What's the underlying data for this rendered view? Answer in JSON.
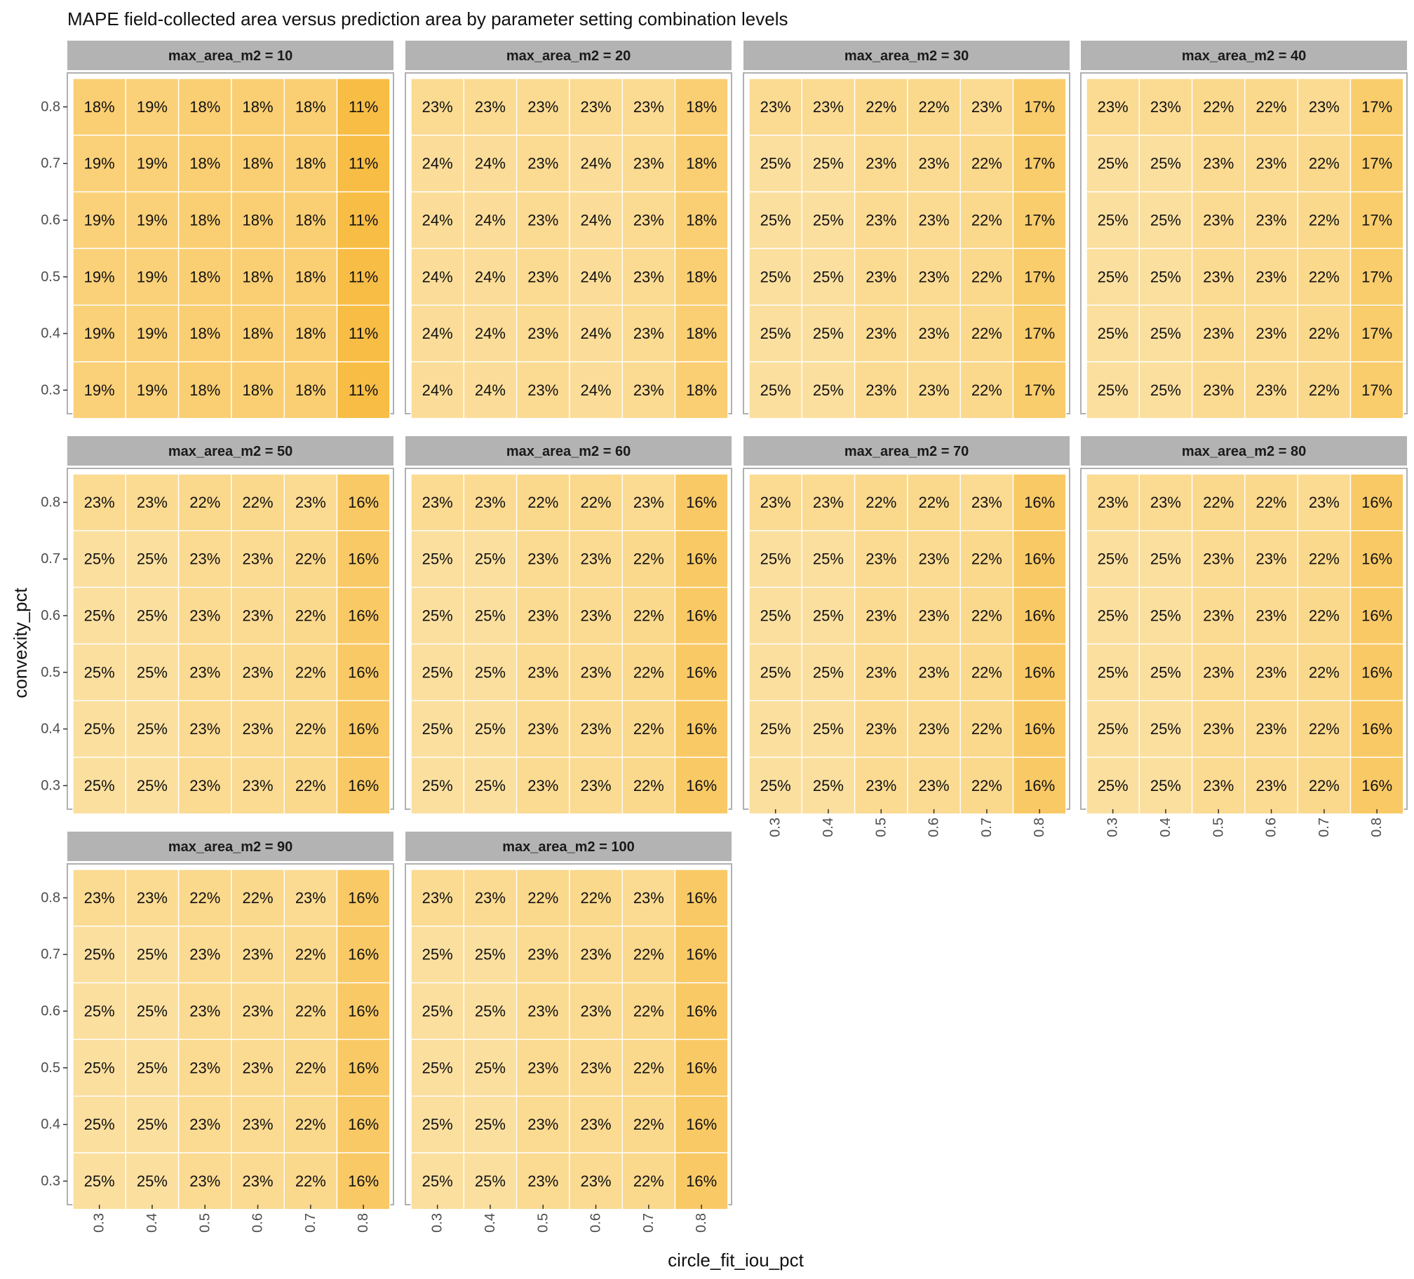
{
  "chart_data": {
    "type": "heatmap",
    "title": "MAPE field-collected area versus prediction area by parameter setting combination levels",
    "xlabel": "circle_fit_iou_pct",
    "ylabel": "convexity_pct",
    "x_ticks": [
      "0.3",
      "0.4",
      "0.5",
      "0.6",
      "0.7",
      "0.8"
    ],
    "y_ticks": [
      "0.3",
      "0.4",
      "0.5",
      "0.6",
      "0.7",
      "0.8"
    ],
    "facet_variable": "max_area_m2",
    "value_format": "percent",
    "color_scale": {
      "low": "#fbdf9f",
      "high": "#f8bd45"
    },
    "panels": [
      {
        "label": "max_area_m2 = 10",
        "rows": [
          {
            "y": "0.8",
            "values": [
              18,
              19,
              18,
              18,
              18,
              11
            ]
          },
          {
            "y": "0.7",
            "values": [
              19,
              19,
              18,
              18,
              18,
              11
            ]
          },
          {
            "y": "0.6",
            "values": [
              19,
              19,
              18,
              18,
              18,
              11
            ]
          },
          {
            "y": "0.5",
            "values": [
              19,
              19,
              18,
              18,
              18,
              11
            ]
          },
          {
            "y": "0.4",
            "values": [
              19,
              19,
              18,
              18,
              18,
              11
            ]
          },
          {
            "y": "0.3",
            "values": [
              19,
              19,
              18,
              18,
              18,
              11
            ]
          }
        ]
      },
      {
        "label": "max_area_m2 = 20",
        "rows": [
          {
            "y": "0.8",
            "values": [
              23,
              23,
              23,
              23,
              23,
              18
            ]
          },
          {
            "y": "0.7",
            "values": [
              24,
              24,
              23,
              24,
              23,
              18
            ]
          },
          {
            "y": "0.6",
            "values": [
              24,
              24,
              23,
              24,
              23,
              18
            ]
          },
          {
            "y": "0.5",
            "values": [
              24,
              24,
              23,
              24,
              23,
              18
            ]
          },
          {
            "y": "0.4",
            "values": [
              24,
              24,
              23,
              24,
              23,
              18
            ]
          },
          {
            "y": "0.3",
            "values": [
              24,
              24,
              23,
              24,
              23,
              18
            ]
          }
        ]
      },
      {
        "label": "max_area_m2 = 30",
        "rows": [
          {
            "y": "0.8",
            "values": [
              23,
              23,
              22,
              22,
              23,
              17
            ]
          },
          {
            "y": "0.7",
            "values": [
              25,
              25,
              23,
              23,
              22,
              17
            ]
          },
          {
            "y": "0.6",
            "values": [
              25,
              25,
              23,
              23,
              22,
              17
            ]
          },
          {
            "y": "0.5",
            "values": [
              25,
              25,
              23,
              23,
              22,
              17
            ]
          },
          {
            "y": "0.4",
            "values": [
              25,
              25,
              23,
              23,
              22,
              17
            ]
          },
          {
            "y": "0.3",
            "values": [
              25,
              25,
              23,
              23,
              22,
              17
            ]
          }
        ]
      },
      {
        "label": "max_area_m2 = 40",
        "rows": [
          {
            "y": "0.8",
            "values": [
              23,
              23,
              22,
              22,
              23,
              17
            ]
          },
          {
            "y": "0.7",
            "values": [
              25,
              25,
              23,
              23,
              22,
              17
            ]
          },
          {
            "y": "0.6",
            "values": [
              25,
              25,
              23,
              23,
              22,
              17
            ]
          },
          {
            "y": "0.5",
            "values": [
              25,
              25,
              23,
              23,
              22,
              17
            ]
          },
          {
            "y": "0.4",
            "values": [
              25,
              25,
              23,
              23,
              22,
              17
            ]
          },
          {
            "y": "0.3",
            "values": [
              25,
              25,
              23,
              23,
              22,
              17
            ]
          }
        ]
      },
      {
        "label": "max_area_m2 = 50",
        "rows": [
          {
            "y": "0.8",
            "values": [
              23,
              23,
              22,
              22,
              23,
              16
            ]
          },
          {
            "y": "0.7",
            "values": [
              25,
              25,
              23,
              23,
              22,
              16
            ]
          },
          {
            "y": "0.6",
            "values": [
              25,
              25,
              23,
              23,
              22,
              16
            ]
          },
          {
            "y": "0.5",
            "values": [
              25,
              25,
              23,
              23,
              22,
              16
            ]
          },
          {
            "y": "0.4",
            "values": [
              25,
              25,
              23,
              23,
              22,
              16
            ]
          },
          {
            "y": "0.3",
            "values": [
              25,
              25,
              23,
              23,
              22,
              16
            ]
          }
        ]
      },
      {
        "label": "max_area_m2 = 60",
        "rows": [
          {
            "y": "0.8",
            "values": [
              23,
              23,
              22,
              22,
              23,
              16
            ]
          },
          {
            "y": "0.7",
            "values": [
              25,
              25,
              23,
              23,
              22,
              16
            ]
          },
          {
            "y": "0.6",
            "values": [
              25,
              25,
              23,
              23,
              22,
              16
            ]
          },
          {
            "y": "0.5",
            "values": [
              25,
              25,
              23,
              23,
              22,
              16
            ]
          },
          {
            "y": "0.4",
            "values": [
              25,
              25,
              23,
              23,
              22,
              16
            ]
          },
          {
            "y": "0.3",
            "values": [
              25,
              25,
              23,
              23,
              22,
              16
            ]
          }
        ]
      },
      {
        "label": "max_area_m2 = 70",
        "rows": [
          {
            "y": "0.8",
            "values": [
              23,
              23,
              22,
              22,
              23,
              16
            ]
          },
          {
            "y": "0.7",
            "values": [
              25,
              25,
              23,
              23,
              22,
              16
            ]
          },
          {
            "y": "0.6",
            "values": [
              25,
              25,
              23,
              23,
              22,
              16
            ]
          },
          {
            "y": "0.5",
            "values": [
              25,
              25,
              23,
              23,
              22,
              16
            ]
          },
          {
            "y": "0.4",
            "values": [
              25,
              25,
              23,
              23,
              22,
              16
            ]
          },
          {
            "y": "0.3",
            "values": [
              25,
              25,
              23,
              23,
              22,
              16
            ]
          }
        ]
      },
      {
        "label": "max_area_m2 = 80",
        "rows": [
          {
            "y": "0.8",
            "values": [
              23,
              23,
              22,
              22,
              23,
              16
            ]
          },
          {
            "y": "0.7",
            "values": [
              25,
              25,
              23,
              23,
              22,
              16
            ]
          },
          {
            "y": "0.6",
            "values": [
              25,
              25,
              23,
              23,
              22,
              16
            ]
          },
          {
            "y": "0.5",
            "values": [
              25,
              25,
              23,
              23,
              22,
              16
            ]
          },
          {
            "y": "0.4",
            "values": [
              25,
              25,
              23,
              23,
              22,
              16
            ]
          },
          {
            "y": "0.3",
            "values": [
              25,
              25,
              23,
              23,
              22,
              16
            ]
          }
        ]
      },
      {
        "label": "max_area_m2 = 90",
        "rows": [
          {
            "y": "0.8",
            "values": [
              23,
              23,
              22,
              22,
              23,
              16
            ]
          },
          {
            "y": "0.7",
            "values": [
              25,
              25,
              23,
              23,
              22,
              16
            ]
          },
          {
            "y": "0.6",
            "values": [
              25,
              25,
              23,
              23,
              22,
              16
            ]
          },
          {
            "y": "0.5",
            "values": [
              25,
              25,
              23,
              23,
              22,
              16
            ]
          },
          {
            "y": "0.4",
            "values": [
              25,
              25,
              23,
              23,
              22,
              16
            ]
          },
          {
            "y": "0.3",
            "values": [
              25,
              25,
              23,
              23,
              22,
              16
            ]
          }
        ]
      },
      {
        "label": "max_area_m2 = 100",
        "rows": [
          {
            "y": "0.8",
            "values": [
              23,
              23,
              22,
              22,
              23,
              16
            ]
          },
          {
            "y": "0.7",
            "values": [
              25,
              25,
              23,
              23,
              22,
              16
            ]
          },
          {
            "y": "0.6",
            "values": [
              25,
              25,
              23,
              23,
              22,
              16
            ]
          },
          {
            "y": "0.5",
            "values": [
              25,
              25,
              23,
              23,
              22,
              16
            ]
          },
          {
            "y": "0.4",
            "values": [
              25,
              25,
              23,
              23,
              22,
              16
            ]
          },
          {
            "y": "0.3",
            "values": [
              25,
              25,
              23,
              23,
              22,
              16
            ]
          }
        ]
      }
    ]
  }
}
